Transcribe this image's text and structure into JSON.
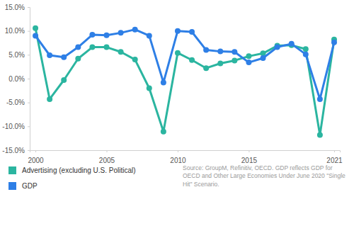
{
  "chart_data": {
    "type": "line",
    "x": [
      2000,
      2001,
      2002,
      2003,
      2004,
      2005,
      2006,
      2007,
      2008,
      2009,
      2010,
      2011,
      2012,
      2013,
      2014,
      2015,
      2016,
      2017,
      2018,
      2019,
      2020,
      2021
    ],
    "series": [
      {
        "name": "Advertising (excluding U.S. Political)",
        "color": "#2bb5a0",
        "marker": "circle",
        "values": [
          10.6,
          -4.3,
          -0.3,
          4.2,
          6.6,
          6.6,
          5.6,
          4.0,
          -2.0,
          -11.1,
          5.4,
          3.9,
          2.2,
          3.2,
          3.8,
          4.7,
          5.3,
          6.9,
          7.0,
          6.2,
          -11.8,
          8.2
        ]
      },
      {
        "name": "GDP",
        "color": "#2e7fe6",
        "marker": "circle",
        "values": [
          9.0,
          4.9,
          4.5,
          6.6,
          9.2,
          9.1,
          9.6,
          10.3,
          9.0,
          -0.8,
          10.0,
          9.8,
          6.0,
          5.7,
          5.6,
          3.4,
          4.3,
          6.6,
          7.3,
          5.1,
          -4.3,
          7.6
        ]
      }
    ],
    "xlim": [
      1999.6,
      2021.4
    ],
    "xticks": [
      2000,
      2005,
      2010,
      2015,
      2021
    ],
    "ylim": [
      -15,
      15
    ],
    "yticks": [
      {
        "value": -15,
        "label": "-15.0%"
      },
      {
        "value": -10,
        "label": "-10.0%"
      },
      {
        "value": -5,
        "label": "-5.0%"
      },
      {
        "value": 0,
        "label": "0.0%"
      },
      {
        "value": 5,
        "label": "5.0%"
      },
      {
        "value": 10,
        "label": "10.0%"
      },
      {
        "value": 15,
        "label": "15.0%"
      }
    ],
    "grid": false,
    "legend": "bottom-left",
    "annotations": [
      "Source: GroupM, Refinitiv, OECD. GDP reflects GDP for OECD and Other Large Economies Under June 2020 \"Single Hit\" Scenario."
    ]
  }
}
